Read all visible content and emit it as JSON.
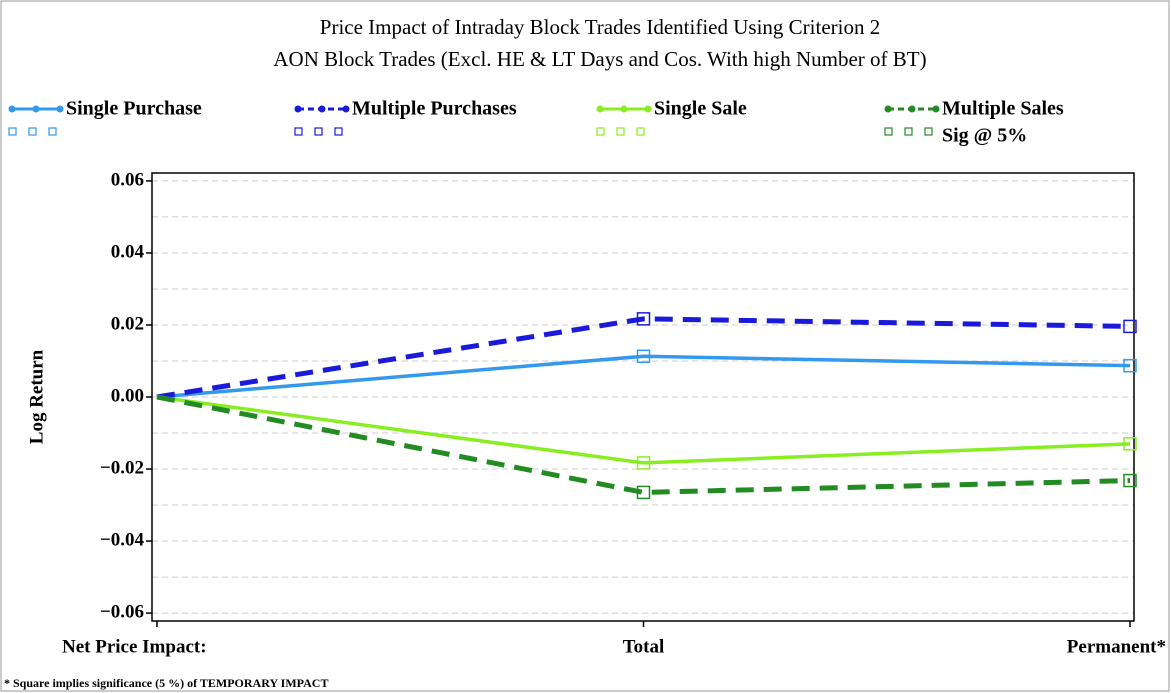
{
  "chart_data": {
    "type": "line",
    "title": "Price Impact of Intraday Block Trades Identified Using Criterion 2",
    "subtitle": "AON Block Trades (Excl. HE & LT Days and Cos. With high Number of BT)",
    "ylabel": "Log Return",
    "footnote": "* Square implies significance (5 %) of TEMPORARY IMPACT",
    "categories": [
      "Net Price Impact:",
      "Total",
      "Permanent*"
    ],
    "ylim": [
      -0.0622,
      0.0622
    ],
    "yticks": [
      {
        "value": 0.06,
        "label": "0.06"
      },
      {
        "value": 0.04,
        "label": "0.04"
      },
      {
        "value": 0.02,
        "label": "0.02"
      },
      {
        "value": 0,
        "label": "0.00"
      },
      {
        "value": -0.02,
        "label": "−0.02"
      },
      {
        "value": -0.04,
        "label": "−0.04"
      },
      {
        "value": -0.06,
        "label": "−0.06"
      }
    ],
    "minor_yticks": [
      0.05,
      0.03,
      0.01,
      -0.01,
      -0.03,
      -0.05
    ],
    "grid": true,
    "sig_label": "Sig @ 5%",
    "series": [
      {
        "name": "Single Purchase",
        "color": "#3399ee",
        "dashed": false,
        "values": [
          0,
          0.0113,
          0.0087
        ],
        "significant": [
          false,
          true,
          true
        ]
      },
      {
        "name": "Multiple Purchases",
        "color": "#1a1adb",
        "dashed": true,
        "values": [
          0,
          0.0217,
          0.0196
        ],
        "significant": [
          false,
          true,
          true
        ]
      },
      {
        "name": "Single Sale",
        "color": "#88ee22",
        "dashed": false,
        "values": [
          0,
          -0.0183,
          -0.013
        ],
        "significant": [
          false,
          true,
          true
        ]
      },
      {
        "name": "Multiple Sales",
        "color": "#228b22",
        "dashed": true,
        "values": [
          0,
          -0.0265,
          -0.0232
        ],
        "significant": [
          false,
          true,
          true
        ]
      }
    ]
  }
}
